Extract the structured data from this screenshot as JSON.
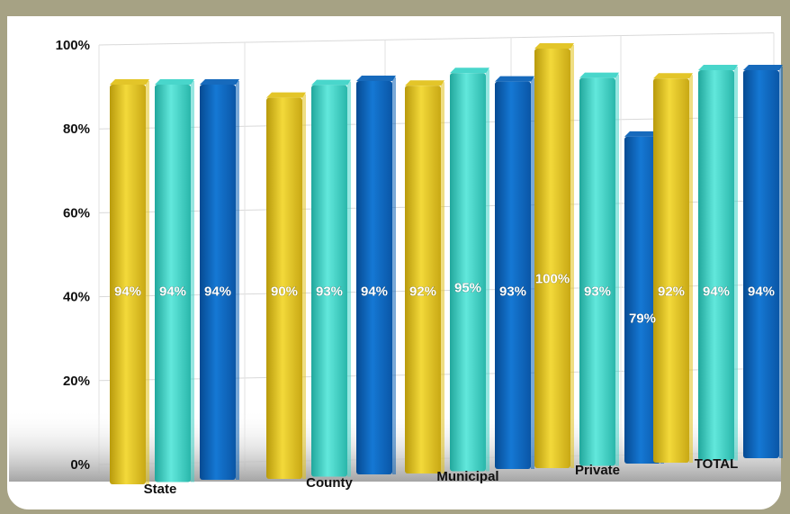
{
  "chart_data": {
    "type": "bar",
    "categories": [
      "State",
      "County",
      "Municipal",
      "Private",
      "TOTAL"
    ],
    "series": [
      {
        "values": [
          94,
          90,
          92,
          100,
          92
        ]
      },
      {
        "values": [
          94,
          93,
          95,
          93,
          94
        ]
      },
      {
        "values": [
          94,
          94,
          93,
          79,
          94
        ]
      }
    ],
    "data_labels": [
      [
        "94%",
        "90%",
        "92%",
        "100%",
        "92%"
      ],
      [
        "94%",
        "93%",
        "95%",
        "93%",
        "94%"
      ],
      [
        "94%",
        "94%",
        "93%",
        "79%",
        "94%"
      ]
    ],
    "yticks": [
      "0%",
      "20%",
      "40%",
      "60%",
      "80%",
      "100%"
    ],
    "ylim": [
      0,
      100
    ],
    "grid": true,
    "legend": "none",
    "colors": [
      "#e2c21e",
      "#3fd4c8",
      "#0b62b8"
    ]
  }
}
